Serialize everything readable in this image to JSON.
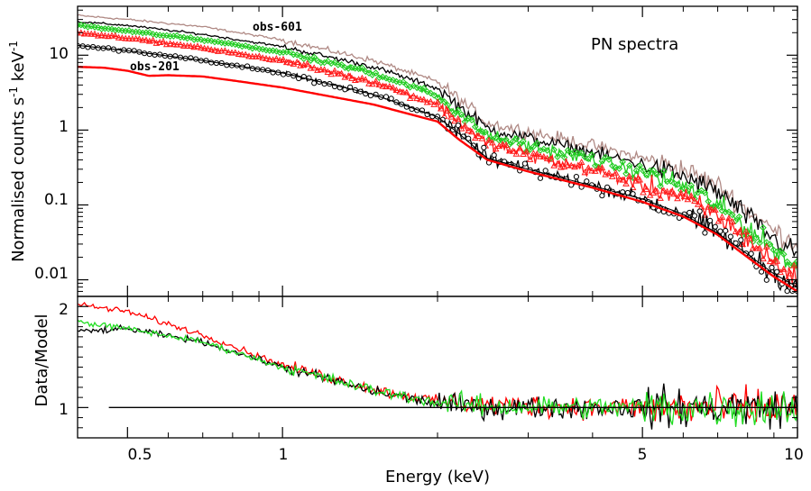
{
  "chart_data": {
    "type": "line",
    "title": "PN spectra",
    "x_axis": {
      "label": "Energy (keV)",
      "scale": "log",
      "range": [
        0.4,
        10
      ],
      "tick_labels": [
        "0.5",
        "1",
        "5",
        "10"
      ],
      "tick_values": [
        0.5,
        1,
        5,
        10
      ]
    },
    "top_panel": {
      "ylabel_main": "Normalised counts s",
      "ylabel_sup1": "-1",
      "ylabel_mid": " keV",
      "ylabel_sup2": "-1",
      "yscale": "log",
      "ylim": [
        0.006,
        45
      ],
      "tick_labels": [
        "0.01",
        "0.1",
        "1",
        "10"
      ],
      "tick_values": [
        0.01,
        0.1,
        1,
        10
      ],
      "annotations": {
        "obs601": "obs-601",
        "obs201": "obs-201",
        "panel_title": "PN spectra"
      },
      "series": [
        {
          "name": "obs-601 (brown)",
          "color": "#b08a85",
          "type": "data",
          "x": [
            0.4,
            0.5,
            0.7,
            1.0,
            1.5,
            2.0,
            2.2,
            2.5,
            3.0,
            4.0,
            5.0,
            6.0,
            7.0,
            8.0,
            9.0,
            10.0
          ],
          "y": [
            34,
            30,
            24,
            16,
            8.5,
            4.4,
            2.6,
            1.25,
            0.95,
            0.62,
            0.42,
            0.3,
            0.18,
            0.085,
            0.045,
            0.03
          ]
        },
        {
          "name": "black (data)",
          "color": "#000000",
          "type": "data",
          "x": [
            0.4,
            0.5,
            0.7,
            1.0,
            1.5,
            2.0,
            2.2,
            2.5,
            3.0,
            4.0,
            5.0,
            6.0,
            7.0,
            8.0,
            9.0,
            10.0
          ],
          "y": [
            28,
            25,
            19,
            13,
            7.0,
            3.6,
            2.1,
            1.05,
            0.78,
            0.5,
            0.35,
            0.24,
            0.15,
            0.07,
            0.035,
            0.022
          ]
        },
        {
          "name": "green (data)",
          "color": "#22cc22",
          "type": "data",
          "x": [
            0.4,
            0.5,
            0.7,
            1.0,
            1.5,
            2.0,
            2.2,
            2.5,
            3.0,
            4.0,
            5.0,
            6.0,
            7.0,
            8.0,
            9.0,
            10.0
          ],
          "y": [
            25,
            21,
            16,
            11,
            5.8,
            2.9,
            1.7,
            0.85,
            0.62,
            0.4,
            0.27,
            0.18,
            0.1,
            0.05,
            0.025,
            0.014
          ]
        },
        {
          "name": "red (data)",
          "color": "#ff1a1a",
          "type": "data",
          "x": [
            0.4,
            0.5,
            0.7,
            1.0,
            1.5,
            2.0,
            2.2,
            2.5,
            3.0,
            4.0,
            5.0,
            6.0,
            7.0,
            8.0,
            9.0,
            10.0
          ],
          "y": [
            20,
            17,
            12.5,
            8.5,
            4.4,
            2.2,
            1.3,
            0.65,
            0.46,
            0.29,
            0.19,
            0.125,
            0.07,
            0.035,
            0.017,
            0.01
          ]
        },
        {
          "name": "obs-201 (black circles)",
          "color": "#000000",
          "type": "data",
          "x": [
            0.4,
            0.5,
            0.7,
            1.0,
            1.5,
            2.0,
            2.2,
            2.5,
            3.0,
            4.0,
            5.0,
            6.0,
            7.0,
            8.0,
            9.0,
            10.0
          ],
          "y": [
            13.5,
            11.5,
            8.5,
            5.8,
            3.0,
            1.5,
            0.9,
            0.42,
            0.3,
            0.18,
            0.12,
            0.075,
            0.042,
            0.022,
            0.012,
            0.008
          ]
        },
        {
          "name": "obs-201 model (red)",
          "color": "#ff0000",
          "type": "model",
          "x": [
            0.4,
            0.45,
            0.5,
            0.55,
            0.6,
            0.7,
            0.8,
            1.0,
            1.5,
            2.0,
            2.2,
            2.5,
            3.0,
            4.0,
            5.0,
            6.0,
            7.0,
            8.0,
            9.0,
            10.0
          ],
          "y": [
            7.0,
            6.8,
            6.2,
            5.3,
            5.4,
            5.2,
            4.6,
            3.7,
            2.2,
            1.3,
            0.75,
            0.4,
            0.28,
            0.17,
            0.11,
            0.07,
            0.04,
            0.02,
            0.011,
            0.007
          ]
        }
      ]
    },
    "bottom_panel": {
      "ylabel": "Data/Model",
      "yscale": "linear",
      "ylim": [
        0.7,
        2.1
      ],
      "tick_labels": [
        "1",
        "2"
      ],
      "tick_values": [
        1,
        2
      ],
      "reference_line": 1,
      "series": [
        {
          "name": "red ratio",
          "color": "#ff0000",
          "x": [
            0.4,
            0.5,
            0.7,
            1.0,
            1.5,
            2.0,
            2.5,
            3.0,
            4.0,
            5.0,
            6.0,
            7.0,
            8.0,
            9.0,
            10.0
          ],
          "y": [
            2.02,
            1.95,
            1.72,
            1.42,
            1.18,
            1.06,
            1.02,
            1.02,
            1.0,
            1.0,
            1.0,
            1.0,
            1.0,
            1.0,
            1.0
          ]
        },
        {
          "name": "black ratio",
          "color": "#000000",
          "x": [
            0.4,
            0.5,
            0.7,
            1.0,
            1.5,
            2.0,
            2.5,
            3.0,
            4.0,
            5.0,
            6.0,
            7.0,
            8.0,
            9.0,
            10.0
          ],
          "y": [
            1.75,
            1.78,
            1.65,
            1.4,
            1.16,
            1.04,
            1.0,
            1.0,
            1.0,
            1.0,
            1.0,
            1.0,
            1.0,
            1.0,
            1.0
          ]
        },
        {
          "name": "green ratio",
          "color": "#22dd22",
          "x": [
            0.4,
            0.5,
            0.7,
            1.0,
            1.5,
            2.0,
            2.5,
            3.0,
            4.0,
            5.0,
            6.0,
            7.0,
            8.0,
            9.0,
            10.0
          ],
          "y": [
            1.85,
            1.78,
            1.65,
            1.4,
            1.17,
            1.05,
            1.01,
            1.01,
            1.0,
            1.0,
            1.0,
            1.0,
            1.0,
            1.0,
            1.0
          ]
        }
      ]
    }
  }
}
